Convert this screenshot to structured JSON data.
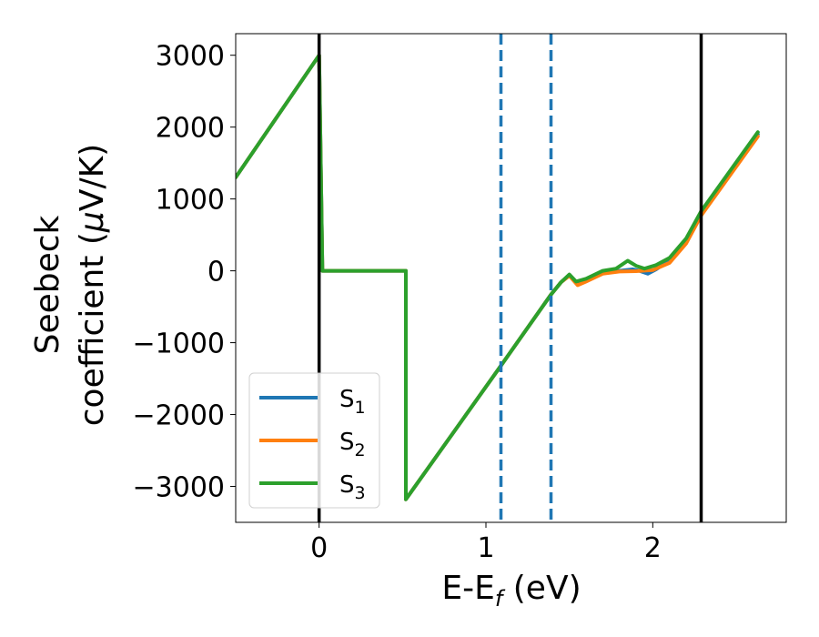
{
  "chart_data": {
    "type": "line",
    "xlabel": "E-E",
    "xlabel_sub": "f",
    "xlabel_unit": " (eV)",
    "ylabel_line1": "Seebeck",
    "ylabel_line2": "coefficient  (",
    "ylabel_mu": "μ",
    "ylabel_unit": "V/K)",
    "xlim": [
      -0.5,
      2.8
    ],
    "ylim": [
      -3500,
      3300
    ],
    "x_ticks": [
      0,
      1,
      2
    ],
    "x_tick_labels": [
      "0",
      "1",
      "2"
    ],
    "y_ticks": [
      3000,
      2000,
      1000,
      0,
      -1000,
      -2000,
      -3000
    ],
    "y_tick_labels": [
      "3000",
      "2000",
      "1000",
      "0",
      "−1000",
      "−2000",
      "−3000"
    ],
    "grid": false,
    "legend_position": "lower-left",
    "vertical_lines": [
      {
        "x": 0.0,
        "style": "solid",
        "color": "#000000"
      },
      {
        "x": 1.09,
        "style": "dashed",
        "color": "#1f77b4"
      },
      {
        "x": 1.39,
        "style": "dashed",
        "color": "#1f77b4"
      },
      {
        "x": 2.29,
        "style": "solid",
        "color": "#000000"
      }
    ],
    "series": [
      {
        "name": "S",
        "sub": "1",
        "color": "#1f77b4",
        "points": [
          [
            -0.5,
            1300
          ],
          [
            0.0,
            3000
          ],
          [
            0.02,
            0
          ],
          [
            0.52,
            0
          ],
          [
            0.52,
            -3180
          ],
          [
            1.09,
            -1320
          ],
          [
            1.39,
            -330
          ],
          [
            1.45,
            -160
          ],
          [
            1.5,
            -60
          ],
          [
            1.54,
            -170
          ],
          [
            1.6,
            -130
          ],
          [
            1.7,
            -30
          ],
          [
            1.8,
            0
          ],
          [
            1.88,
            20
          ],
          [
            1.92,
            0
          ],
          [
            1.97,
            -40
          ],
          [
            2.02,
            20
          ],
          [
            2.1,
            150
          ],
          [
            2.2,
            420
          ],
          [
            2.29,
            800
          ],
          [
            2.63,
            1900
          ]
        ]
      },
      {
        "name": "S",
        "sub": "2",
        "color": "#ff7f0e",
        "points": [
          [
            -0.5,
            1300
          ],
          [
            0.0,
            3000
          ],
          [
            0.02,
            0
          ],
          [
            0.52,
            0
          ],
          [
            0.52,
            -3180
          ],
          [
            1.09,
            -1320
          ],
          [
            1.39,
            -330
          ],
          [
            1.45,
            -160
          ],
          [
            1.5,
            -70
          ],
          [
            1.55,
            -200
          ],
          [
            1.6,
            -150
          ],
          [
            1.7,
            -40
          ],
          [
            1.8,
            -10
          ],
          [
            1.9,
            -5
          ],
          [
            2.0,
            10
          ],
          [
            2.1,
            110
          ],
          [
            2.2,
            380
          ],
          [
            2.29,
            770
          ],
          [
            2.63,
            1870
          ]
        ]
      },
      {
        "name": "S",
        "sub": "3",
        "color": "#2ca02c",
        "points": [
          [
            -0.5,
            1300
          ],
          [
            0.0,
            3000
          ],
          [
            0.02,
            0
          ],
          [
            0.52,
            0
          ],
          [
            0.52,
            -3180
          ],
          [
            1.09,
            -1320
          ],
          [
            1.39,
            -330
          ],
          [
            1.45,
            -160
          ],
          [
            1.5,
            -50
          ],
          [
            1.54,
            -150
          ],
          [
            1.6,
            -110
          ],
          [
            1.7,
            0
          ],
          [
            1.78,
            30
          ],
          [
            1.85,
            140
          ],
          [
            1.9,
            70
          ],
          [
            1.95,
            30
          ],
          [
            2.02,
            80
          ],
          [
            2.1,
            180
          ],
          [
            2.2,
            450
          ],
          [
            2.29,
            830
          ],
          [
            2.63,
            1930
          ]
        ]
      }
    ]
  }
}
